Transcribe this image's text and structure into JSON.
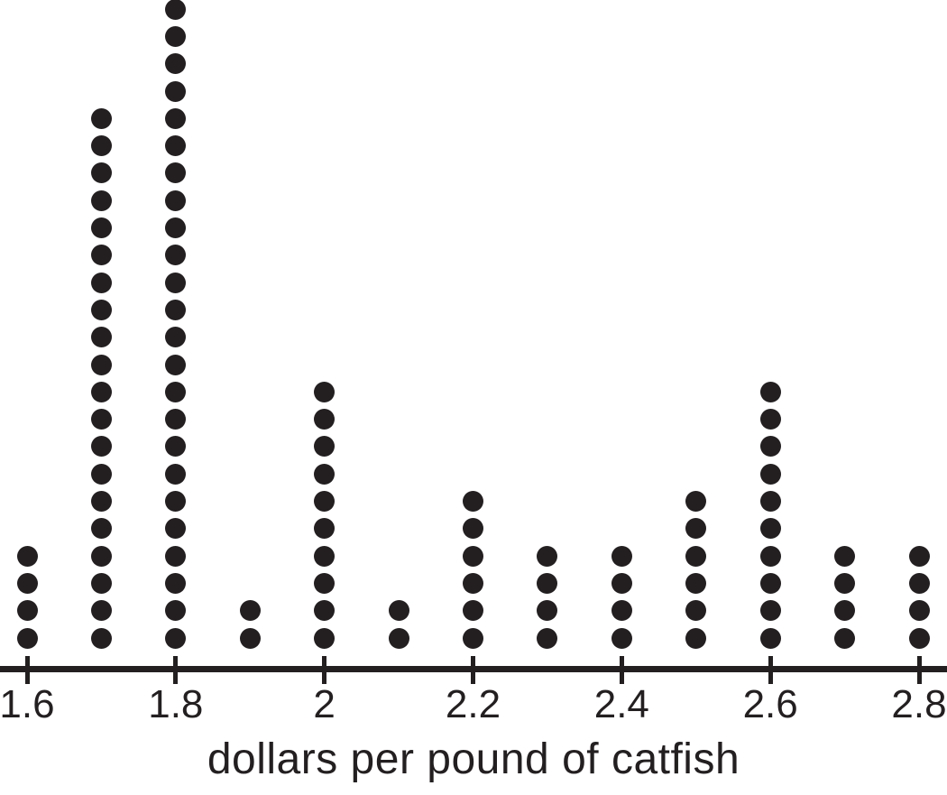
{
  "chart_data": {
    "type": "dotplot",
    "title": "",
    "xlabel": "dollars per pound of catfish",
    "ylabel": "",
    "x_values": [
      1.6,
      1.7,
      1.8,
      1.9,
      2.0,
      2.1,
      2.2,
      2.3,
      2.4,
      2.5,
      2.6,
      2.7,
      2.8
    ],
    "counts": [
      4,
      20,
      24,
      2,
      10,
      2,
      6,
      4,
      4,
      6,
      10,
      4,
      4
    ],
    "total_observations": 100,
    "x_axis": {
      "tick_values": [
        1.6,
        1.8,
        2.0,
        2.2,
        2.4,
        2.6,
        2.8
      ],
      "tick_labels": [
        "1.6",
        "1.8",
        "2",
        "2.2",
        "2.4",
        "2.6",
        "2.8"
      ],
      "range_shown": [
        1.6,
        2.8
      ]
    },
    "grid": false,
    "legend": "none",
    "colors": {
      "dot": "#231f20",
      "axis": "#231f20",
      "text": "#231f20"
    }
  }
}
